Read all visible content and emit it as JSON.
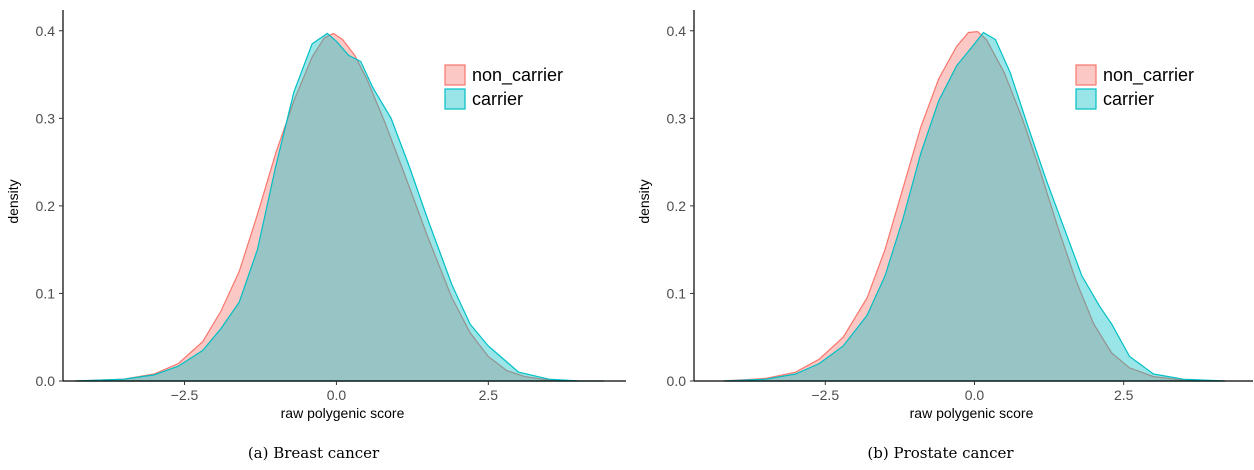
{
  "chart_data": [
    {
      "type": "area",
      "caption": "(a) Breast cancer",
      "xlabel": "raw polygenic score",
      "ylabel": "density",
      "xlim": [
        -4.5,
        4.7
      ],
      "ylim": [
        0,
        0.41
      ],
      "x_ticks": [
        -2.5,
        0,
        2.5
      ],
      "x_tick_labels": [
        "−2.5",
        "0.0",
        "2.5"
      ],
      "y_ticks": [
        0,
        0.1,
        0.2,
        0.3,
        0.4
      ],
      "y_tick_labels": [
        "0.0",
        "0.1",
        "0.2",
        "0.3",
        "0.4"
      ],
      "grid": false,
      "legend_position": "top-right",
      "series": [
        {
          "name": "non_carrier",
          "color": "#F8766D",
          "x": [
            -4.3,
            -3.5,
            -3.0,
            -2.6,
            -2.2,
            -1.9,
            -1.6,
            -1.3,
            -1.0,
            -0.7,
            -0.4,
            -0.2,
            -0.05,
            0.1,
            0.3,
            0.5,
            0.8,
            1.1,
            1.5,
            1.9,
            2.2,
            2.5,
            2.8,
            3.1,
            3.5,
            4.0,
            4.4
          ],
          "y": [
            0.0,
            0.002,
            0.008,
            0.02,
            0.045,
            0.08,
            0.125,
            0.19,
            0.26,
            0.32,
            0.37,
            0.392,
            0.397,
            0.39,
            0.372,
            0.345,
            0.295,
            0.24,
            0.165,
            0.095,
            0.055,
            0.028,
            0.012,
            0.005,
            0.001,
            0.0,
            0.0
          ]
        },
        {
          "name": "carrier",
          "color": "#00BFC4",
          "x": [
            -4.3,
            -3.5,
            -3.0,
            -2.6,
            -2.2,
            -1.9,
            -1.6,
            -1.3,
            -1.0,
            -0.7,
            -0.4,
            -0.15,
            0.0,
            0.2,
            0.4,
            0.6,
            0.9,
            1.2,
            1.5,
            1.9,
            2.2,
            2.5,
            2.7,
            3.0,
            3.5,
            4.0,
            4.4
          ],
          "y": [
            0.0,
            0.002,
            0.007,
            0.017,
            0.035,
            0.06,
            0.09,
            0.15,
            0.245,
            0.33,
            0.385,
            0.397,
            0.388,
            0.372,
            0.365,
            0.335,
            0.3,
            0.245,
            0.185,
            0.11,
            0.065,
            0.04,
            0.028,
            0.01,
            0.002,
            0.0,
            0.0
          ]
        }
      ]
    },
    {
      "type": "area",
      "caption": "(b) Prostate cancer",
      "xlabel": "raw polygenic score",
      "ylabel": "density",
      "xlim": [
        -4.7,
        4.6
      ],
      "ylim": [
        0,
        0.41
      ],
      "x_ticks": [
        -2.5,
        0,
        2.5
      ],
      "x_tick_labels": [
        "−2.5",
        "0.0",
        "2.5"
      ],
      "y_ticks": [
        0,
        0.1,
        0.2,
        0.3,
        0.4
      ],
      "y_tick_labels": [
        "0.0",
        "0.1",
        "0.2",
        "0.3",
        "0.4"
      ],
      "grid": false,
      "legend_position": "top-right",
      "series": [
        {
          "name": "non_carrier",
          "color": "#F8766D",
          "x": [
            -4.2,
            -3.5,
            -3.0,
            -2.6,
            -2.2,
            -1.8,
            -1.5,
            -1.2,
            -0.9,
            -0.6,
            -0.3,
            -0.1,
            0.05,
            0.2,
            0.5,
            0.8,
            1.1,
            1.4,
            1.7,
            2.0,
            2.3,
            2.6,
            3.0,
            3.5,
            4.2
          ],
          "y": [
            0.0,
            0.003,
            0.01,
            0.025,
            0.05,
            0.095,
            0.15,
            0.22,
            0.29,
            0.345,
            0.382,
            0.398,
            0.399,
            0.39,
            0.352,
            0.3,
            0.24,
            0.175,
            0.115,
            0.065,
            0.032,
            0.015,
            0.005,
            0.001,
            0.0
          ]
        },
        {
          "name": "carrier",
          "color": "#00BFC4",
          "x": [
            -4.2,
            -3.5,
            -3.0,
            -2.6,
            -2.2,
            -1.8,
            -1.5,
            -1.2,
            -0.9,
            -0.6,
            -0.3,
            0.0,
            0.15,
            0.35,
            0.6,
            0.9,
            1.2,
            1.5,
            1.8,
            2.1,
            2.3,
            2.6,
            3.0,
            3.5,
            4.2
          ],
          "y": [
            0.0,
            0.002,
            0.008,
            0.02,
            0.04,
            0.075,
            0.12,
            0.185,
            0.26,
            0.32,
            0.36,
            0.385,
            0.398,
            0.39,
            0.352,
            0.29,
            0.23,
            0.175,
            0.12,
            0.085,
            0.065,
            0.028,
            0.008,
            0.002,
            0.0
          ]
        }
      ]
    }
  ]
}
